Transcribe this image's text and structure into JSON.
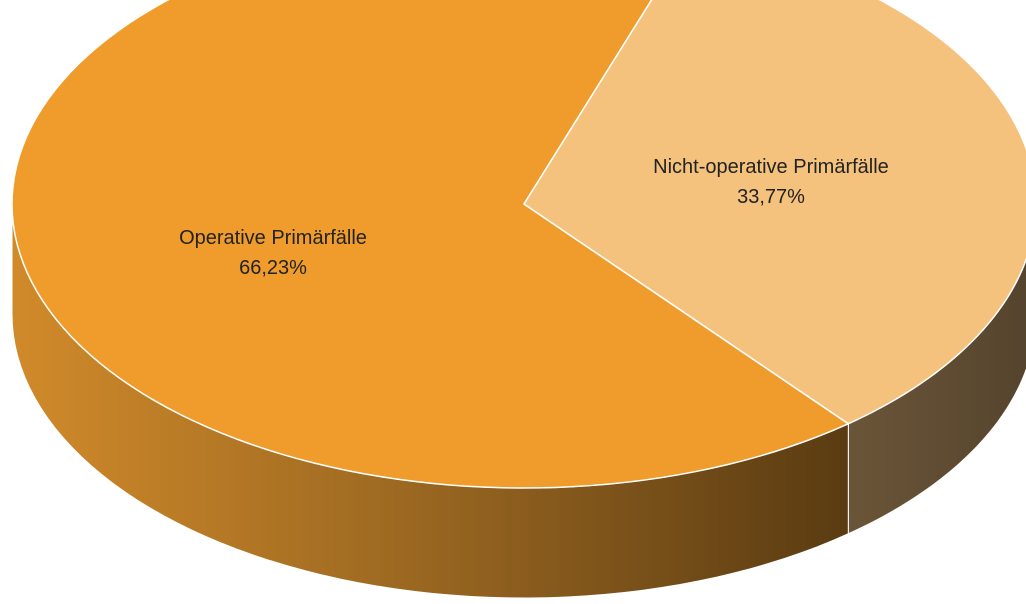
{
  "chart_data": {
    "type": "pie",
    "style": "3d",
    "categories": [
      "Operative Primärfälle",
      "Nicht-operative Primärfälle"
    ],
    "values": [
      66.23,
      33.77
    ],
    "value_labels": [
      "66,23%",
      "33,77%"
    ],
    "colors": [
      "#F09C2C",
      "#F5C27E"
    ],
    "side_colors": [
      "#8C5A17",
      "#5E4B33"
    ],
    "title": "",
    "legend": "none"
  }
}
